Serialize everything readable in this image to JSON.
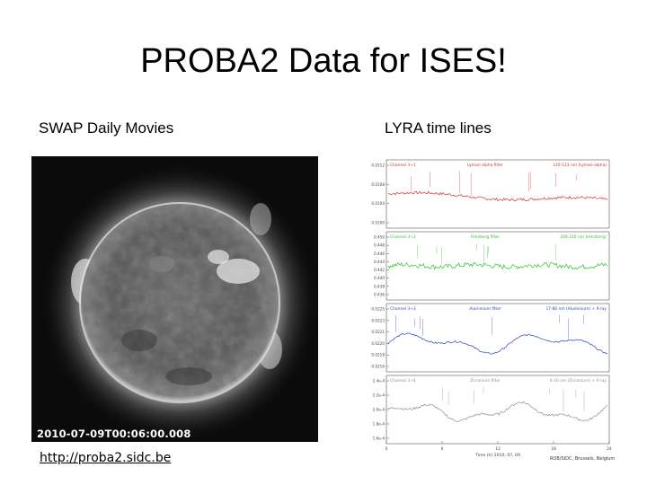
{
  "slide": {
    "title": "PROBA2 Data for ISES!"
  },
  "swap": {
    "heading": "SWAP Daily Movies",
    "timestamp": "2010-07-09T00:06:00.008",
    "link": "http://proba2.sidc.be"
  },
  "lyra": {
    "heading": "LYRA time lines",
    "credit": "ROB/SIDC, Brussels, Belgium",
    "time_axis_label": "Time (h) 2010, 07, 09",
    "x_ticks": [
      "0",
      "6",
      "12",
      "18",
      "24"
    ],
    "channels": [
      {
        "channel_label": "Channel 3+1",
        "filter_label": "Lyman-alpha filter",
        "range_label": "120-123 nm (Lyman-alpha)",
        "color": "#d03030",
        "y_ticks": [
          "0.0112",
          "0.0108",
          "0.0104",
          "0.0100"
        ]
      },
      {
        "channel_label": "Channel 3+2",
        "filter_label": "Herzberg filter",
        "range_label": "200-220 nm (Herzberg)",
        "color": "#30c030",
        "y_ticks": [
          "0.450",
          "0.448",
          "0.446",
          "0.444",
          "0.442",
          "0.440",
          "0.438",
          "0.436"
        ]
      },
      {
        "channel_label": "Channel 3+3",
        "filter_label": "Aluminium filter",
        "range_label": "17-80 nm (Aluminium) + X-ray",
        "color": "#3040c0",
        "y_ticks": [
          "0.0225",
          "0.0223",
          "0.0221",
          "0.0220",
          "0.0218",
          "0.0216"
        ]
      },
      {
        "channel_label": "Channel 3+4",
        "filter_label": "Zirconium filter",
        "range_label": "6-20 nm (Zirconium) + X-ray",
        "color": "#909090",
        "y_ticks": [
          "2.4e-4",
          "2.2e-4",
          "2.0e-4",
          "1.8e-4",
          "1.6e-4"
        ]
      }
    ]
  }
}
